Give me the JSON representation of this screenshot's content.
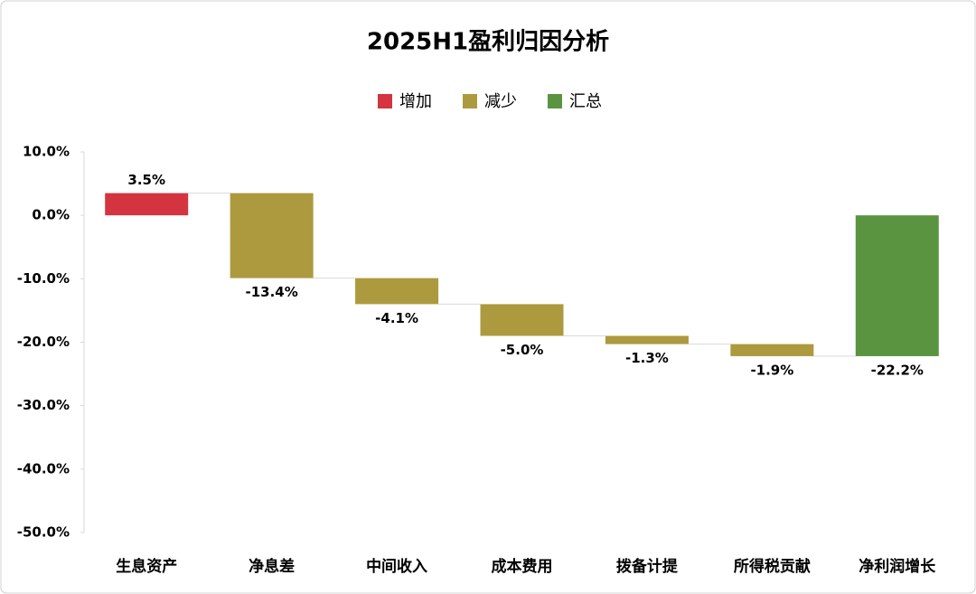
{
  "chart_data": {
    "type": "waterfall",
    "title": "2025H1盈利归因分析",
    "categories": [
      "生息资产",
      "净息差",
      "中间收入",
      "成本费用",
      "拨备计提",
      "所得税贡献",
      "净利润增长"
    ],
    "series": [
      {
        "name": "增加",
        "color": "#d4343f",
        "values": [
          3.5,
          null,
          null,
          null,
          null,
          null,
          null
        ],
        "value_labels": [
          "3.5%",
          null,
          null,
          null,
          null,
          null,
          null
        ]
      },
      {
        "name": "减少",
        "color": "#ad9a3e",
        "values": [
          null,
          -13.4,
          -4.1,
          -5.0,
          -1.3,
          -1.9,
          null
        ],
        "value_labels": [
          null,
          "-13.4%",
          "-4.1%",
          "-5.0%",
          "-1.3%",
          "-1.9%",
          null
        ]
      },
      {
        "name": "汇总",
        "color": "#5a9440",
        "total": true,
        "values": [
          null,
          null,
          null,
          null,
          null,
          null,
          -22.2
        ],
        "value_labels": [
          null,
          null,
          null,
          null,
          null,
          null,
          "-22.2%"
        ]
      }
    ],
    "ylim": [
      -50,
      10
    ],
    "yticks": [
      {
        "value": -50,
        "label": "-50.0%"
      },
      {
        "value": -40,
        "label": "-40.0%"
      },
      {
        "value": -30,
        "label": "-30.0%"
      },
      {
        "value": -20,
        "label": "-20.0%"
      },
      {
        "value": -10,
        "label": "-10.0%"
      },
      {
        "value": 0,
        "label": "0.0%"
      },
      {
        "value": 10,
        "label": "10.0%"
      }
    ]
  }
}
